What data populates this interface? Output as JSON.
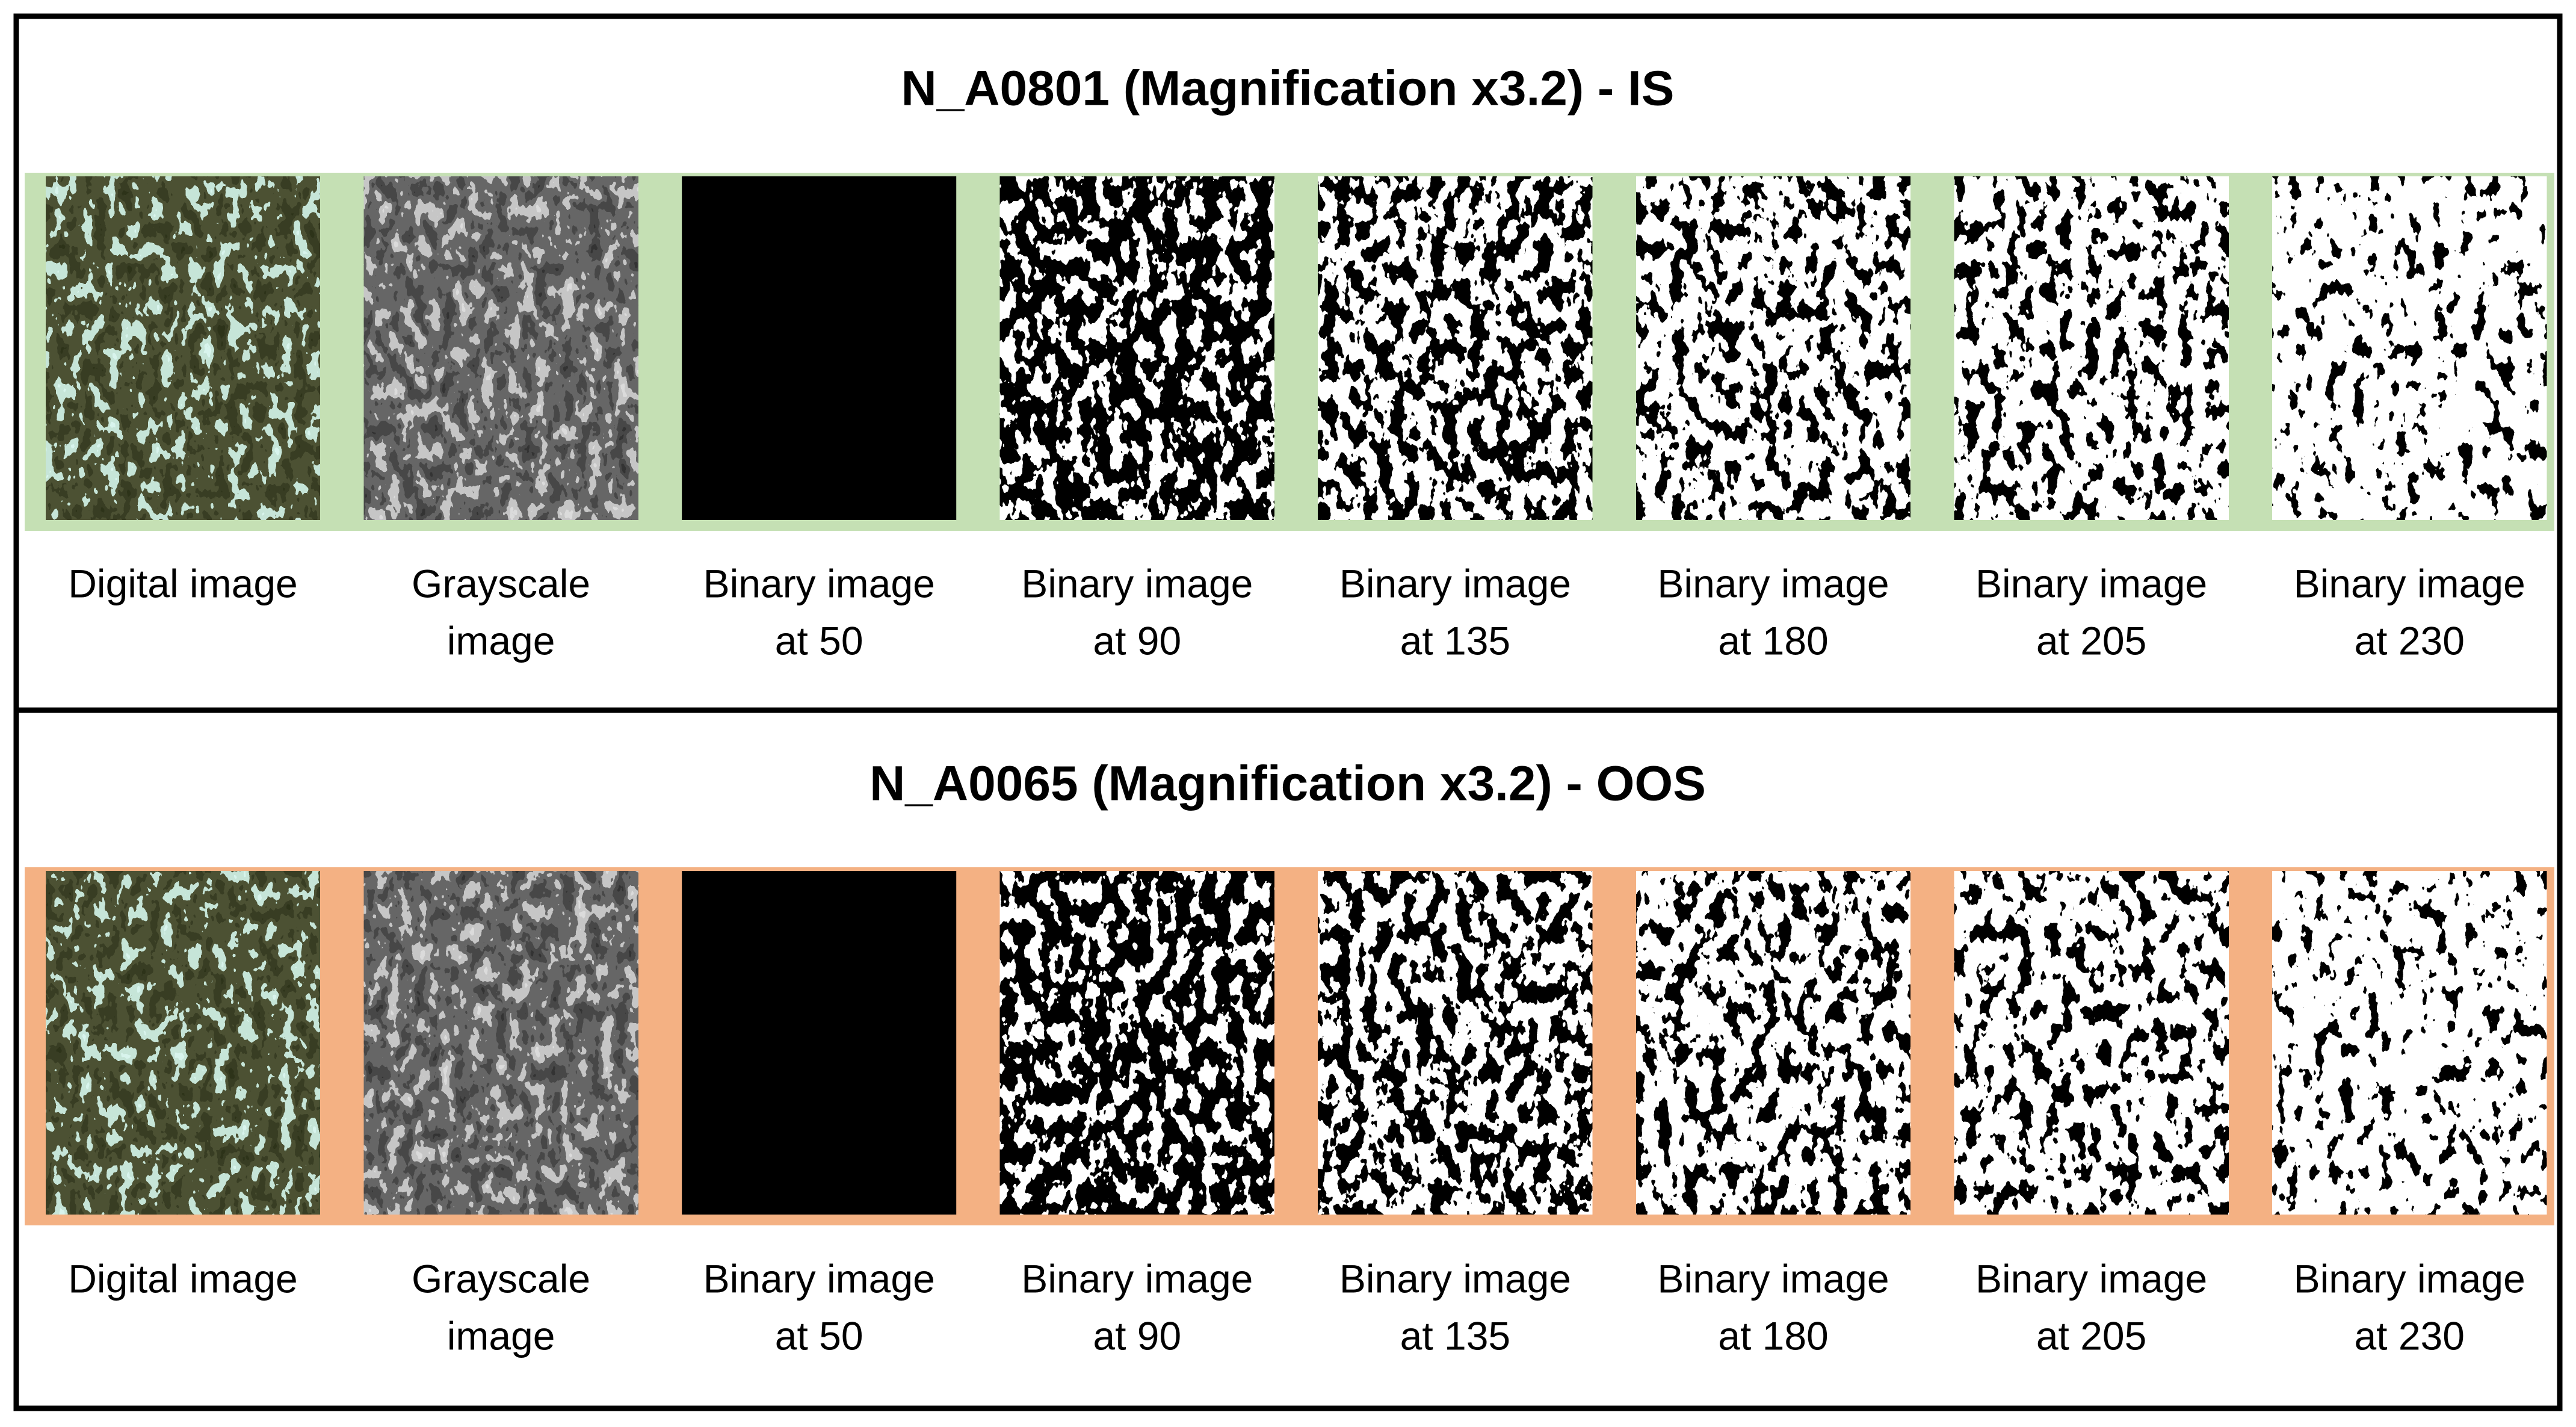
{
  "panels": [
    {
      "title": "N_A0801 (Magnification x3.2) - IS",
      "captions": [
        [
          "Digital image"
        ],
        [
          "Grayscale",
          "image"
        ],
        [
          "Binary image",
          "at 50"
        ],
        [
          "Binary image",
          "at 90"
        ],
        [
          "Binary image",
          "at 135"
        ],
        [
          "Binary image",
          "at 180"
        ],
        [
          "Binary image",
          "at 205"
        ],
        [
          "Binary image",
          "at 230"
        ]
      ]
    },
    {
      "title": "N_A0065 (Magnification x3.2) - OOS",
      "captions": [
        [
          "Digital image"
        ],
        [
          "Grayscale",
          "image"
        ],
        [
          "Binary image",
          "at 50"
        ],
        [
          "Binary image",
          "at 90"
        ],
        [
          "Binary image",
          "at 135"
        ],
        [
          "Binary image",
          "at 180"
        ],
        [
          "Binary image",
          "at 205"
        ],
        [
          "Binary image",
          "at 230"
        ]
      ]
    }
  ]
}
